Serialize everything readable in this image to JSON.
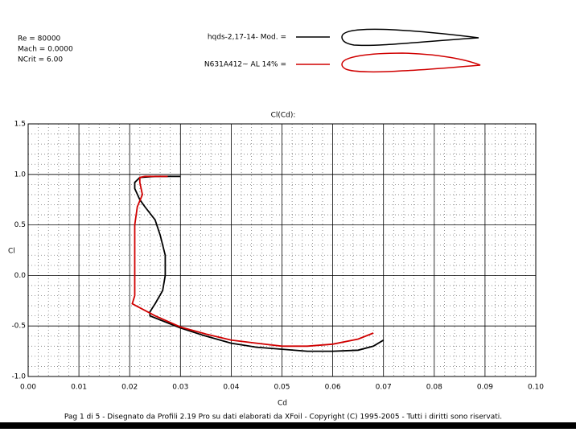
{
  "chart_data": {
    "type": "line",
    "title": "Cl(Cd):",
    "x_label": "Cd",
    "y_label": "Cl",
    "info": [
      "Re = 80000",
      "Mach = 0.0000",
      "NCrit = 6.00"
    ],
    "footer": "Pag 1 di 5  -   Disegnato da Profili 2.19 Pro su dati elaborati da XFoil - Copyright (C) 1995-2005 - Tutti i diritti sono riservati.",
    "xlim": [
      0,
      0.1
    ],
    "ylim": [
      -1.0,
      1.5
    ],
    "xticks": [
      {
        "value": 0,
        "label": "0.00"
      },
      {
        "value": 0.01,
        "label": "0.01"
      },
      {
        "value": 0.02,
        "label": "0.02"
      },
      {
        "value": 0.03,
        "label": "0.03"
      },
      {
        "value": 0.04,
        "label": "0.04"
      },
      {
        "value": 0.05,
        "label": "0.05"
      },
      {
        "value": 0.06,
        "label": "0.06"
      },
      {
        "value": 0.07,
        "label": "0.07"
      },
      {
        "value": 0.08,
        "label": "0.08"
      },
      {
        "value": 0.09,
        "label": "0.09"
      },
      {
        "value": 0.1,
        "label": "0.10"
      }
    ],
    "yticks": [
      1.5,
      {
        "value": 1,
        "label": "1.0"
      },
      0.5,
      {
        "value": 0,
        "label": "0.0"
      },
      -0.5,
      {
        "value": -1,
        "label": "-1.0"
      }
    ],
    "grid": true,
    "series": [
      {
        "name": "hqds-2,17-14- Mod. =",
        "color": "#000000",
        "x": [
          0.03,
          0.025,
          0.022,
          0.021,
          0.021,
          0.022,
          0.023,
          0.025,
          0.026,
          0.027,
          0.027,
          0.0265,
          0.025,
          0.024,
          0.024,
          0.026,
          0.03,
          0.035,
          0.04,
          0.045,
          0.05,
          0.055,
          0.06,
          0.065,
          0.068,
          0.07
        ],
        "values": [
          0.98,
          0.98,
          0.97,
          0.92,
          0.86,
          0.75,
          0.68,
          0.55,
          0.4,
          0.2,
          0.0,
          -0.15,
          -0.28,
          -0.36,
          -0.4,
          -0.44,
          -0.52,
          -0.6,
          -0.67,
          -0.71,
          -0.73,
          -0.75,
          -0.75,
          -0.74,
          -0.7,
          -0.64
        ]
      },
      {
        "name": "N631A412~ AL 14% =",
        "color": "#d00000",
        "x": [
          0.0275,
          0.023,
          0.022,
          0.022,
          0.0225,
          0.0215,
          0.021,
          0.021,
          0.021,
          0.021,
          0.0205,
          0.022,
          0.025,
          0.03,
          0.035,
          0.04,
          0.045,
          0.05,
          0.055,
          0.06,
          0.065,
          0.068
        ],
        "values": [
          0.98,
          0.98,
          0.97,
          0.92,
          0.8,
          0.68,
          0.5,
          0.2,
          0.0,
          -0.2,
          -0.28,
          -0.32,
          -0.4,
          -0.51,
          -0.58,
          -0.64,
          -0.67,
          -0.7,
          -0.7,
          -0.68,
          -0.63,
          -0.57
        ]
      }
    ]
  }
}
